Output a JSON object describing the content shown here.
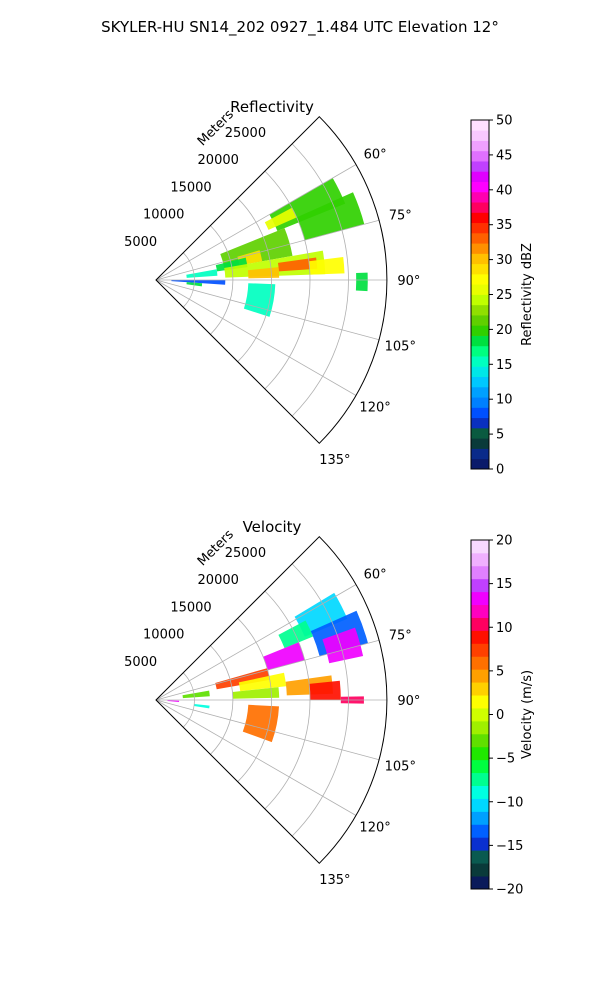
{
  "figure": {
    "title": "SKYLER-HU  SN14_202  0927_1.484 UTC Elevation 12°"
  },
  "chart_data": [
    {
      "type": "heatmap",
      "subtype": "polar-sector",
      "title": "Reflectivity",
      "radial_label": "Meters",
      "radial_ticks": [
        5000,
        10000,
        15000,
        20000,
        25000
      ],
      "radial_tick_labels": [
        "5000",
        "10000",
        "15000",
        "20000",
        "25000"
      ],
      "rlim": [
        0,
        30000
      ],
      "theta_ticks": [
        60,
        75,
        90,
        105,
        120,
        135
      ],
      "theta_tick_labels": [
        "60°",
        "75°",
        "90°",
        "105°",
        "120°",
        "135°"
      ],
      "theta_range": [
        45,
        135
      ],
      "grid": true,
      "colorbar": {
        "label": "Reflectivity dBZ",
        "range": [
          0,
          50
        ],
        "ticks": [
          0,
          5,
          10,
          15,
          20,
          25,
          30,
          35,
          40,
          45,
          50
        ],
        "tick_labels": [
          "0",
          "5",
          "10",
          "15",
          "20",
          "25",
          "30",
          "35",
          "40",
          "45",
          "50"
        ]
      },
      "echo_regions": [
        {
          "theta": [
            60,
            68
          ],
          "range_m": [
            17000,
            26500
          ],
          "value": 20
        },
        {
          "theta": [
            62,
            66
          ],
          "range_m": [
            16000,
            20000
          ],
          "value": 25
        },
        {
          "theta": [
            66,
            75
          ],
          "range_m": [
            20000,
            28000
          ],
          "value": 20
        },
        {
          "theta": [
            68,
            80
          ],
          "range_m": [
            9000,
            18000
          ],
          "value": 22
        },
        {
          "theta": [
            74,
            80
          ],
          "range_m": [
            11000,
            14000
          ],
          "value": 28
        },
        {
          "theta": [
            76,
            82
          ],
          "range_m": [
            8000,
            12000
          ],
          "value": 18
        },
        {
          "theta": [
            80,
            88
          ],
          "range_m": [
            9000,
            22000
          ],
          "value": 24
        },
        {
          "theta": [
            82,
            86
          ],
          "range_m": [
            16000,
            21000
          ],
          "value": 33
        },
        {
          "theta": [
            84,
            89
          ],
          "range_m": [
            12000,
            16000
          ],
          "value": 30
        },
        {
          "theta": [
            83,
            88
          ],
          "range_m": [
            20000,
            24500
          ],
          "value": 27
        },
        {
          "theta": [
            80,
            86
          ],
          "range_m": [
            4000,
            8000
          ],
          "value": 15
        },
        {
          "theta": [
            90,
            94
          ],
          "range_m": [
            2000,
            9000
          ],
          "value": 8
        },
        {
          "theta": [
            94,
            98
          ],
          "range_m": [
            4000,
            6000
          ],
          "value": 18
        },
        {
          "theta": [
            92,
            108
          ],
          "range_m": [
            12000,
            15500
          ],
          "value": 15
        },
        {
          "theta": [
            88,
            93
          ],
          "range_m": [
            26000,
            27500
          ],
          "value": 18
        }
      ]
    },
    {
      "type": "heatmap",
      "subtype": "polar-sector",
      "title": "Velocity",
      "radial_label": "Meters",
      "radial_ticks": [
        5000,
        10000,
        15000,
        20000,
        25000
      ],
      "radial_tick_labels": [
        "5000",
        "10000",
        "15000",
        "20000",
        "25000"
      ],
      "rlim": [
        0,
        30000
      ],
      "theta_ticks": [
        60,
        75,
        90,
        105,
        120,
        135
      ],
      "theta_tick_labels": [
        "60°",
        "75°",
        "90°",
        "105°",
        "120°",
        "135°"
      ],
      "theta_range": [
        45,
        135
      ],
      "grid": true,
      "colorbar": {
        "label": "Velocity (m/s)",
        "range": [
          -20,
          20
        ],
        "ticks": [
          -20,
          -15,
          -10,
          -5,
          0,
          5,
          10,
          15,
          20
        ],
        "tick_labels": [
          "−20",
          "−15",
          "−10",
          "−5",
          "0",
          "5",
          "10",
          "15",
          "20"
        ]
      },
      "echo_regions": [
        {
          "theta": [
            59,
            67
          ],
          "range_m": [
            21000,
            27000
          ],
          "value": -11
        },
        {
          "theta": [
            62,
            68
          ],
          "range_m": [
            18000,
            22000
          ],
          "value": -7
        },
        {
          "theta": [
            66,
            75
          ],
          "range_m": [
            22000,
            28500
          ],
          "value": -13
        },
        {
          "theta": [
            70,
            78
          ],
          "range_m": [
            23000,
            27500
          ],
          "value": 14
        },
        {
          "theta": [
            68,
            75
          ],
          "range_m": [
            15000,
            20000
          ],
          "value": 13
        },
        {
          "theta": [
            74,
            80
          ],
          "range_m": [
            8000,
            15000
          ],
          "value": 7
        },
        {
          "theta": [
            78,
            84
          ],
          "range_m": [
            11000,
            17000
          ],
          "value": 1
        },
        {
          "theta": [
            82,
            88
          ],
          "range_m": [
            17000,
            23000
          ],
          "value": 5
        },
        {
          "theta": [
            84,
            89
          ],
          "range_m": [
            10000,
            16000
          ],
          "value": -2
        },
        {
          "theta": [
            84,
            90
          ],
          "range_m": [
            20000,
            24000
          ],
          "value": 9
        },
        {
          "theta": [
            80,
            86
          ],
          "range_m": [
            3500,
            7000
          ],
          "value": -3
        },
        {
          "theta": [
            89,
            91
          ],
          "range_m": [
            24000,
            27000
          ],
          "value": 10
        },
        {
          "theta": [
            92,
            95
          ],
          "range_m": [
            1500,
            3000
          ],
          "value": 14
        },
        {
          "theta": [
            96,
            99
          ],
          "range_m": [
            5000,
            7000
          ],
          "value": -9
        },
        {
          "theta": [
            93,
            110
          ],
          "range_m": [
            12000,
            16000
          ],
          "value": 6
        }
      ]
    }
  ]
}
